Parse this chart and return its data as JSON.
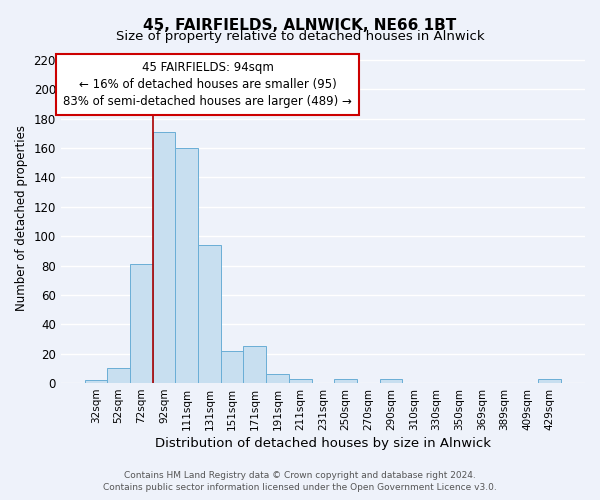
{
  "title": "45, FAIRFIELDS, ALNWICK, NE66 1BT",
  "subtitle": "Size of property relative to detached houses in Alnwick",
  "xlabel": "Distribution of detached houses by size in Alnwick",
  "ylabel": "Number of detached properties",
  "categories": [
    "32sqm",
    "52sqm",
    "72sqm",
    "92sqm",
    "111sqm",
    "131sqm",
    "151sqm",
    "171sqm",
    "191sqm",
    "211sqm",
    "231sqm",
    "250sqm",
    "270sqm",
    "290sqm",
    "310sqm",
    "330sqm",
    "350sqm",
    "369sqm",
    "389sqm",
    "409sqm",
    "429sqm"
  ],
  "values": [
    2,
    10,
    81,
    171,
    160,
    94,
    22,
    25,
    6,
    3,
    0,
    3,
    0,
    3,
    0,
    0,
    0,
    0,
    0,
    0,
    3
  ],
  "bar_color": "#c8dff0",
  "bar_edge_color": "#6aaed6",
  "vline_x": 2.5,
  "vline_color": "#aa0000",
  "annotation_line1": "45 FAIRFIELDS: 94sqm",
  "annotation_line2": "← 16% of detached houses are smaller (95)",
  "annotation_line3": "83% of semi-detached houses are larger (489) →",
  "annotation_box_color": "#ffffff",
  "annotation_box_edge_color": "#cc0000",
  "ylim": [
    0,
    225
  ],
  "yticks": [
    0,
    20,
    40,
    60,
    80,
    100,
    120,
    140,
    160,
    180,
    200,
    220
  ],
  "footer_line1": "Contains HM Land Registry data © Crown copyright and database right 2024.",
  "footer_line2": "Contains public sector information licensed under the Open Government Licence v3.0.",
  "bg_color": "#eef2fa",
  "plot_bg_color": "#eef2fa",
  "grid_color": "#ffffff"
}
